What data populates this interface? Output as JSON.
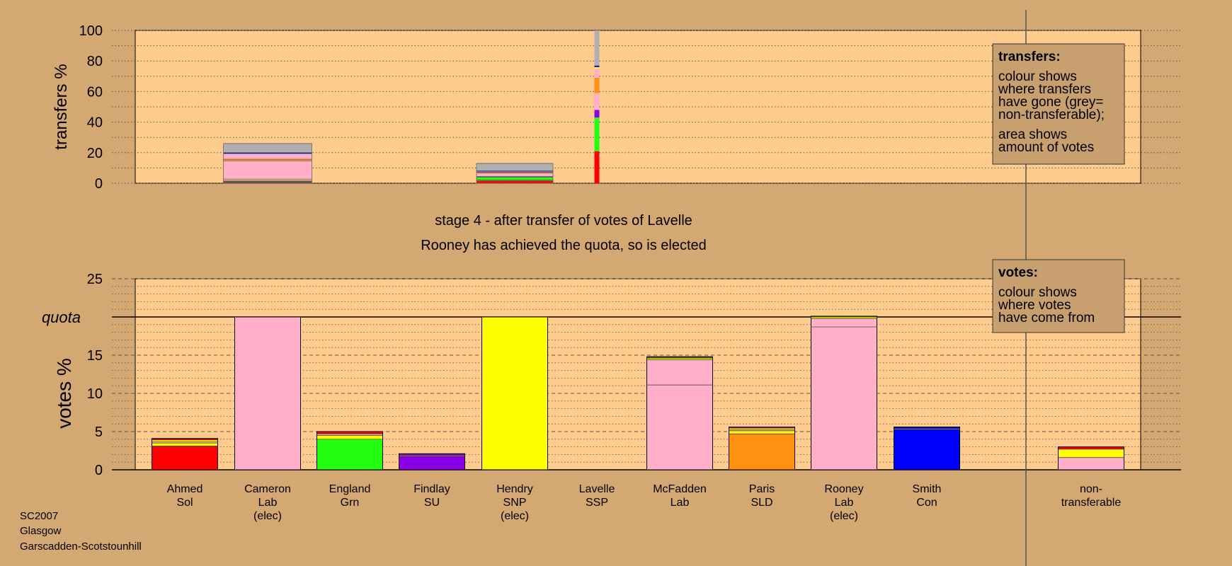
{
  "colors": {
    "background": "#D4A872",
    "plot_background": "#FFCC8E",
    "legend_background": "#C8A070",
    "grey": "#B0B0B0",
    "Sol": "#FF0000",
    "Lab": "#FFB0C8",
    "Grn": "#22FF11",
    "SU": "#8A00E6",
    "SNP": "#FFFF00",
    "SSP": "#E08080",
    "SLD": "#FF9010",
    "Con": "#0000FF"
  },
  "chart_data": [
    {
      "type": "bar",
      "id": "transfers",
      "ylabel": "transfers %",
      "ylim": [
        0,
        100
      ],
      "yticks": [
        0,
        20,
        40,
        60,
        80,
        100
      ],
      "grid": true,
      "columns": [
        {
          "candidate": "Cameron",
          "total": 26,
          "segments": [
            {
              "party": "Sol",
              "value": 0.5
            },
            {
              "party": "Grn",
              "value": 0.4
            },
            {
              "party": "SU",
              "value": 0.3
            },
            {
              "party": "SNP",
              "value": 0.5
            },
            {
              "party": "Lab",
              "value": 1.0
            },
            {
              "party": "Lab",
              "value": 12.0
            },
            {
              "party": "SLD",
              "value": 1.0
            },
            {
              "party": "Lab",
              "value": 3.7
            },
            {
              "party": "Con",
              "value": 0.6
            },
            {
              "party": "grey",
              "value": 6.0
            }
          ]
        },
        {
          "candidate": "Hendry",
          "total": 13,
          "segments": [
            {
              "party": "Sol",
              "value": 1.6
            },
            {
              "party": "SNP",
              "value": 0.4
            },
            {
              "party": "Grn",
              "value": 2.0
            },
            {
              "party": "SU",
              "value": 0.4
            },
            {
              "party": "Lab",
              "value": 2.2
            },
            {
              "party": "SLD",
              "value": 0.5
            },
            {
              "party": "Lab",
              "value": 0.6
            },
            {
              "party": "Con",
              "value": 0.4
            },
            {
              "party": "grey",
              "value": 4.9
            }
          ]
        },
        {
          "candidate": "Lavelle",
          "total": 100,
          "segments": [
            {
              "party": "Sol",
              "value": 21
            },
            {
              "party": "Grn",
              "value": 22
            },
            {
              "party": "SU",
              "value": 5
            },
            {
              "party": "Lab",
              "value": 11
            },
            {
              "party": "SLD",
              "value": 10
            },
            {
              "party": "Lab",
              "value": 6
            },
            {
              "party": "SNP",
              "value": 1
            },
            {
              "party": "Con",
              "value": 1
            },
            {
              "party": "grey",
              "value": 23
            }
          ]
        }
      ],
      "legend": {
        "title": "transfers:",
        "lines": [
          "colour shows",
          "where transfers",
          "have gone (grey=",
          "non-transferable);",
          "area shows",
          "amount of votes"
        ]
      }
    },
    {
      "type": "bar",
      "id": "votes",
      "ylabel": "votes %",
      "ylim": [
        0,
        25
      ],
      "yticks": [
        0,
        5,
        10,
        15,
        20,
        25
      ],
      "quota": 20,
      "quota_label": "quota",
      "grid": true,
      "columns": [
        {
          "name": "Ahmed",
          "party": "Sol",
          "elected": false,
          "segments": [
            {
              "party": "Sol",
              "value": 3.1
            },
            {
              "party": "SNP",
              "value": 0.4
            },
            {
              "party": "Lab",
              "value": 0.15
            },
            {
              "party": "SNP",
              "value": 0.25
            },
            {
              "party": "Sol",
              "value": 0.2
            }
          ]
        },
        {
          "name": "Cameron",
          "party": "Lab",
          "elected": true,
          "segments": [
            {
              "party": "Lab",
              "value": 20
            }
          ]
        },
        {
          "name": "England",
          "party": "Grn",
          "elected": false,
          "segments": [
            {
              "party": "Grn",
              "value": 4.0
            },
            {
              "party": "SNP",
              "value": 0.5
            },
            {
              "party": "Lab",
              "value": 0.2
            },
            {
              "party": "Sol",
              "value": 0.3
            }
          ]
        },
        {
          "name": "Findlay",
          "party": "SU",
          "elected": false,
          "segments": [
            {
              "party": "SU",
              "value": 1.8
            },
            {
              "party": "SNP",
              "value": 0.1
            },
            {
              "party": "SU",
              "value": 0.2
            }
          ]
        },
        {
          "name": "Hendry",
          "party": "SNP",
          "elected": true,
          "segments": [
            {
              "party": "SNP",
              "value": 20
            }
          ]
        },
        {
          "name": "Lavelle",
          "party": "SSP",
          "elected": false,
          "segments": []
        },
        {
          "name": "McFadden",
          "party": "Lab",
          "elected": false,
          "segments": [
            {
              "party": "Lab",
              "value": 11.1
            },
            {
              "party": "Lab",
              "value": 3.3
            },
            {
              "party": "SNP",
              "value": 0.2
            },
            {
              "party": "Grn",
              "value": 0.1
            },
            {
              "party": "Sol",
              "value": 0.1
            }
          ]
        },
        {
          "name": "Paris",
          "party": "SLD",
          "elected": false,
          "segments": [
            {
              "party": "SLD",
              "value": 4.7
            },
            {
              "party": "SNP",
              "value": 0.4
            },
            {
              "party": "Lab",
              "value": 0.15
            },
            {
              "party": "SNP",
              "value": 0.2
            },
            {
              "party": "Sol",
              "value": 0.15
            }
          ]
        },
        {
          "name": "Rooney",
          "party": "Lab",
          "elected": true,
          "segments": [
            {
              "party": "Lab",
              "value": 18.7
            },
            {
              "party": "Lab",
              "value": 1.1
            },
            {
              "party": "SNP",
              "value": 0.2
            },
            {
              "party": "Grn",
              "value": 0.1
            }
          ]
        },
        {
          "name": "Smith",
          "party": "Con",
          "elected": false,
          "segments": [
            {
              "party": "Con",
              "value": 5.3
            },
            {
              "party": "SNP",
              "value": 0.1
            },
            {
              "party": "Con",
              "value": 0.2
            }
          ]
        },
        {
          "name": "non-transferable",
          "party": "",
          "elected": false,
          "segments": [
            {
              "party": "Lab",
              "value": 1.6
            },
            {
              "party": "SNP",
              "value": 1.1
            },
            {
              "party": "Sol",
              "value": 0.3
            }
          ]
        }
      ],
      "legend": {
        "title": "votes:",
        "lines": [
          "colour shows",
          "where votes",
          "have come from"
        ]
      }
    }
  ],
  "labels": {
    "Ahmed": [
      "Ahmed",
      "Sol"
    ],
    "Cameron": [
      "Cameron",
      "Lab",
      "(elec)"
    ],
    "England": [
      "England",
      "Grn"
    ],
    "Findlay": [
      "Findlay",
      "SU"
    ],
    "Hendry": [
      "Hendry",
      "SNP",
      "(elec)"
    ],
    "Lavelle": [
      "Lavelle",
      "SSP"
    ],
    "McFadden": [
      "McFadden",
      "Lab"
    ],
    "Paris": [
      "Paris",
      "SLD"
    ],
    "Rooney": [
      "Rooney",
      "Lab",
      "(elec)"
    ],
    "Smith": [
      "Smith",
      "Con"
    ],
    "non-transferable": [
      "non-",
      "transferable"
    ]
  },
  "stage_title": "stage 4 - after transfer of votes of Lavelle",
  "stage_subtitle": "Rooney has achieved the quota, so is elected",
  "footer": [
    "SC2007",
    "Glasgow",
    "Garscadden-Scotstounhill"
  ]
}
